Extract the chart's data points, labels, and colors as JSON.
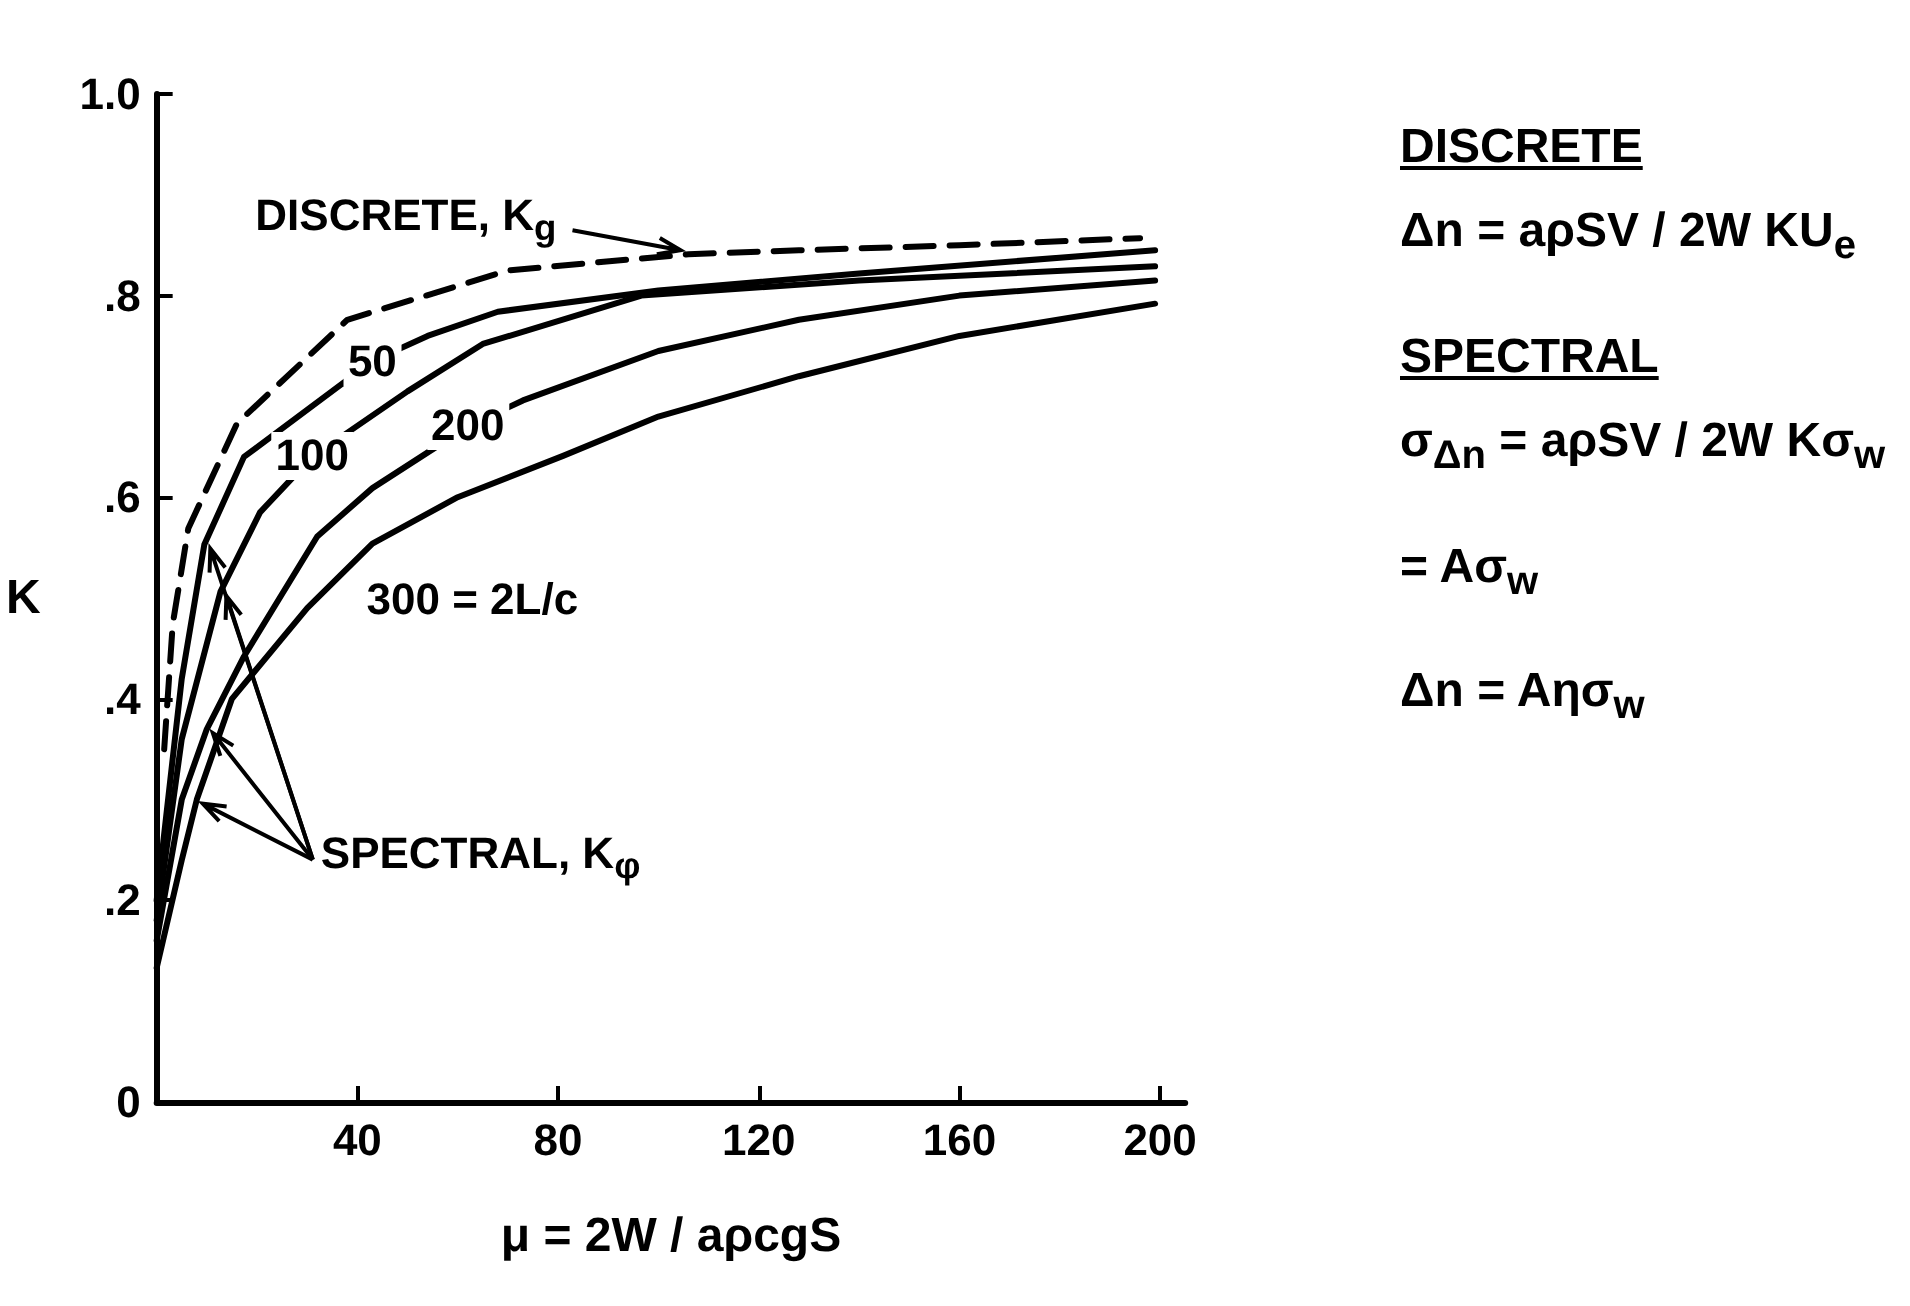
{
  "chart_data": {
    "type": "line",
    "xlabel": "μ = 2W / aρcgS",
    "ylabel": "K",
    "xlim": [
      0,
      205
    ],
    "xticks": [
      40,
      80,
      120,
      160,
      200
    ],
    "ylim": [
      0,
      1
    ],
    "yticks": [
      {
        "value": 0,
        "label": "0"
      },
      {
        "value": 0.2,
        "label": ".2"
      },
      {
        "value": 0.4,
        "label": ".4"
      },
      {
        "value": 0.6,
        "label": ".6"
      },
      {
        "value": 0.8,
        "label": ".8"
      },
      {
        "value": 1,
        "label": "1.0"
      }
    ],
    "grid": false,
    "legend": false,
    "marker": "none",
    "series": [
      {
        "color": "#000000",
        "line_style": "dashed",
        "x": [
          1.5,
          3.2,
          6.3,
          16,
          38,
          70,
          106,
          128,
          160,
          196
        ],
        "values": [
          0.35,
          0.474,
          0.569,
          0.673,
          0.776,
          0.825,
          0.841,
          0.845,
          0.85,
          0.857
        ]
      },
      {
        "name": "50",
        "color": "#000000",
        "line_style": "solid",
        "x": [
          0,
          5,
          9.5,
          17.4,
          43,
          54,
          68,
          100,
          140,
          199
        ],
        "values": [
          0.2,
          0.42,
          0.553,
          0.64,
          0.735,
          0.76,
          0.784,
          0.805,
          0.822,
          0.845
        ]
      },
      {
        "name": "100",
        "color": "#000000",
        "line_style": "solid",
        "x": [
          0,
          5,
          12.7,
          20.6,
          31,
          50,
          65,
          96.6,
          140,
          199
        ],
        "values": [
          0.18,
          0.36,
          0.506,
          0.585,
          0.64,
          0.705,
          0.752,
          0.8,
          0.815,
          0.829
        ]
      },
      {
        "name": "200",
        "color": "#000000",
        "line_style": "solid",
        "x": [
          0,
          5,
          10,
          17.4,
          32,
          43,
          62,
          73,
          100,
          128,
          160,
          199
        ],
        "values": [
          0.16,
          0.3,
          0.37,
          0.442,
          0.561,
          0.609,
          0.67,
          0.696,
          0.745,
          0.776,
          0.8,
          0.815
        ]
      },
      {
        "name": "300 = 2L/c",
        "color": "#000000",
        "line_style": "solid",
        "x": [
          0,
          5,
          8,
          15,
          30,
          43,
          60,
          81,
          100,
          128,
          160,
          199
        ],
        "values": [
          0.133,
          0.24,
          0.3,
          0.4,
          0.49,
          0.554,
          0.6,
          0.641,
          0.68,
          0.72,
          0.76,
          0.792
        ]
      }
    ],
    "annotations": [
      {
        "text": "SPECTRAL, K$_{φ}$",
        "x": 8,
        "y": 0.3
      },
      {
        "text": "DISCRETE, K$_{g}$",
        "x": 106,
        "y": 0.841
      },
      "DISCRETE",
      "Δn = aρSV / 2W KU$_{e}$",
      "SPECTRAL",
      "σ$_{Δn}$ = aρSV / 2W Kσ$_{w}$",
      "= Aσ$_{w}$",
      "Δn = Aησ$_{w}$"
    ]
  }
}
